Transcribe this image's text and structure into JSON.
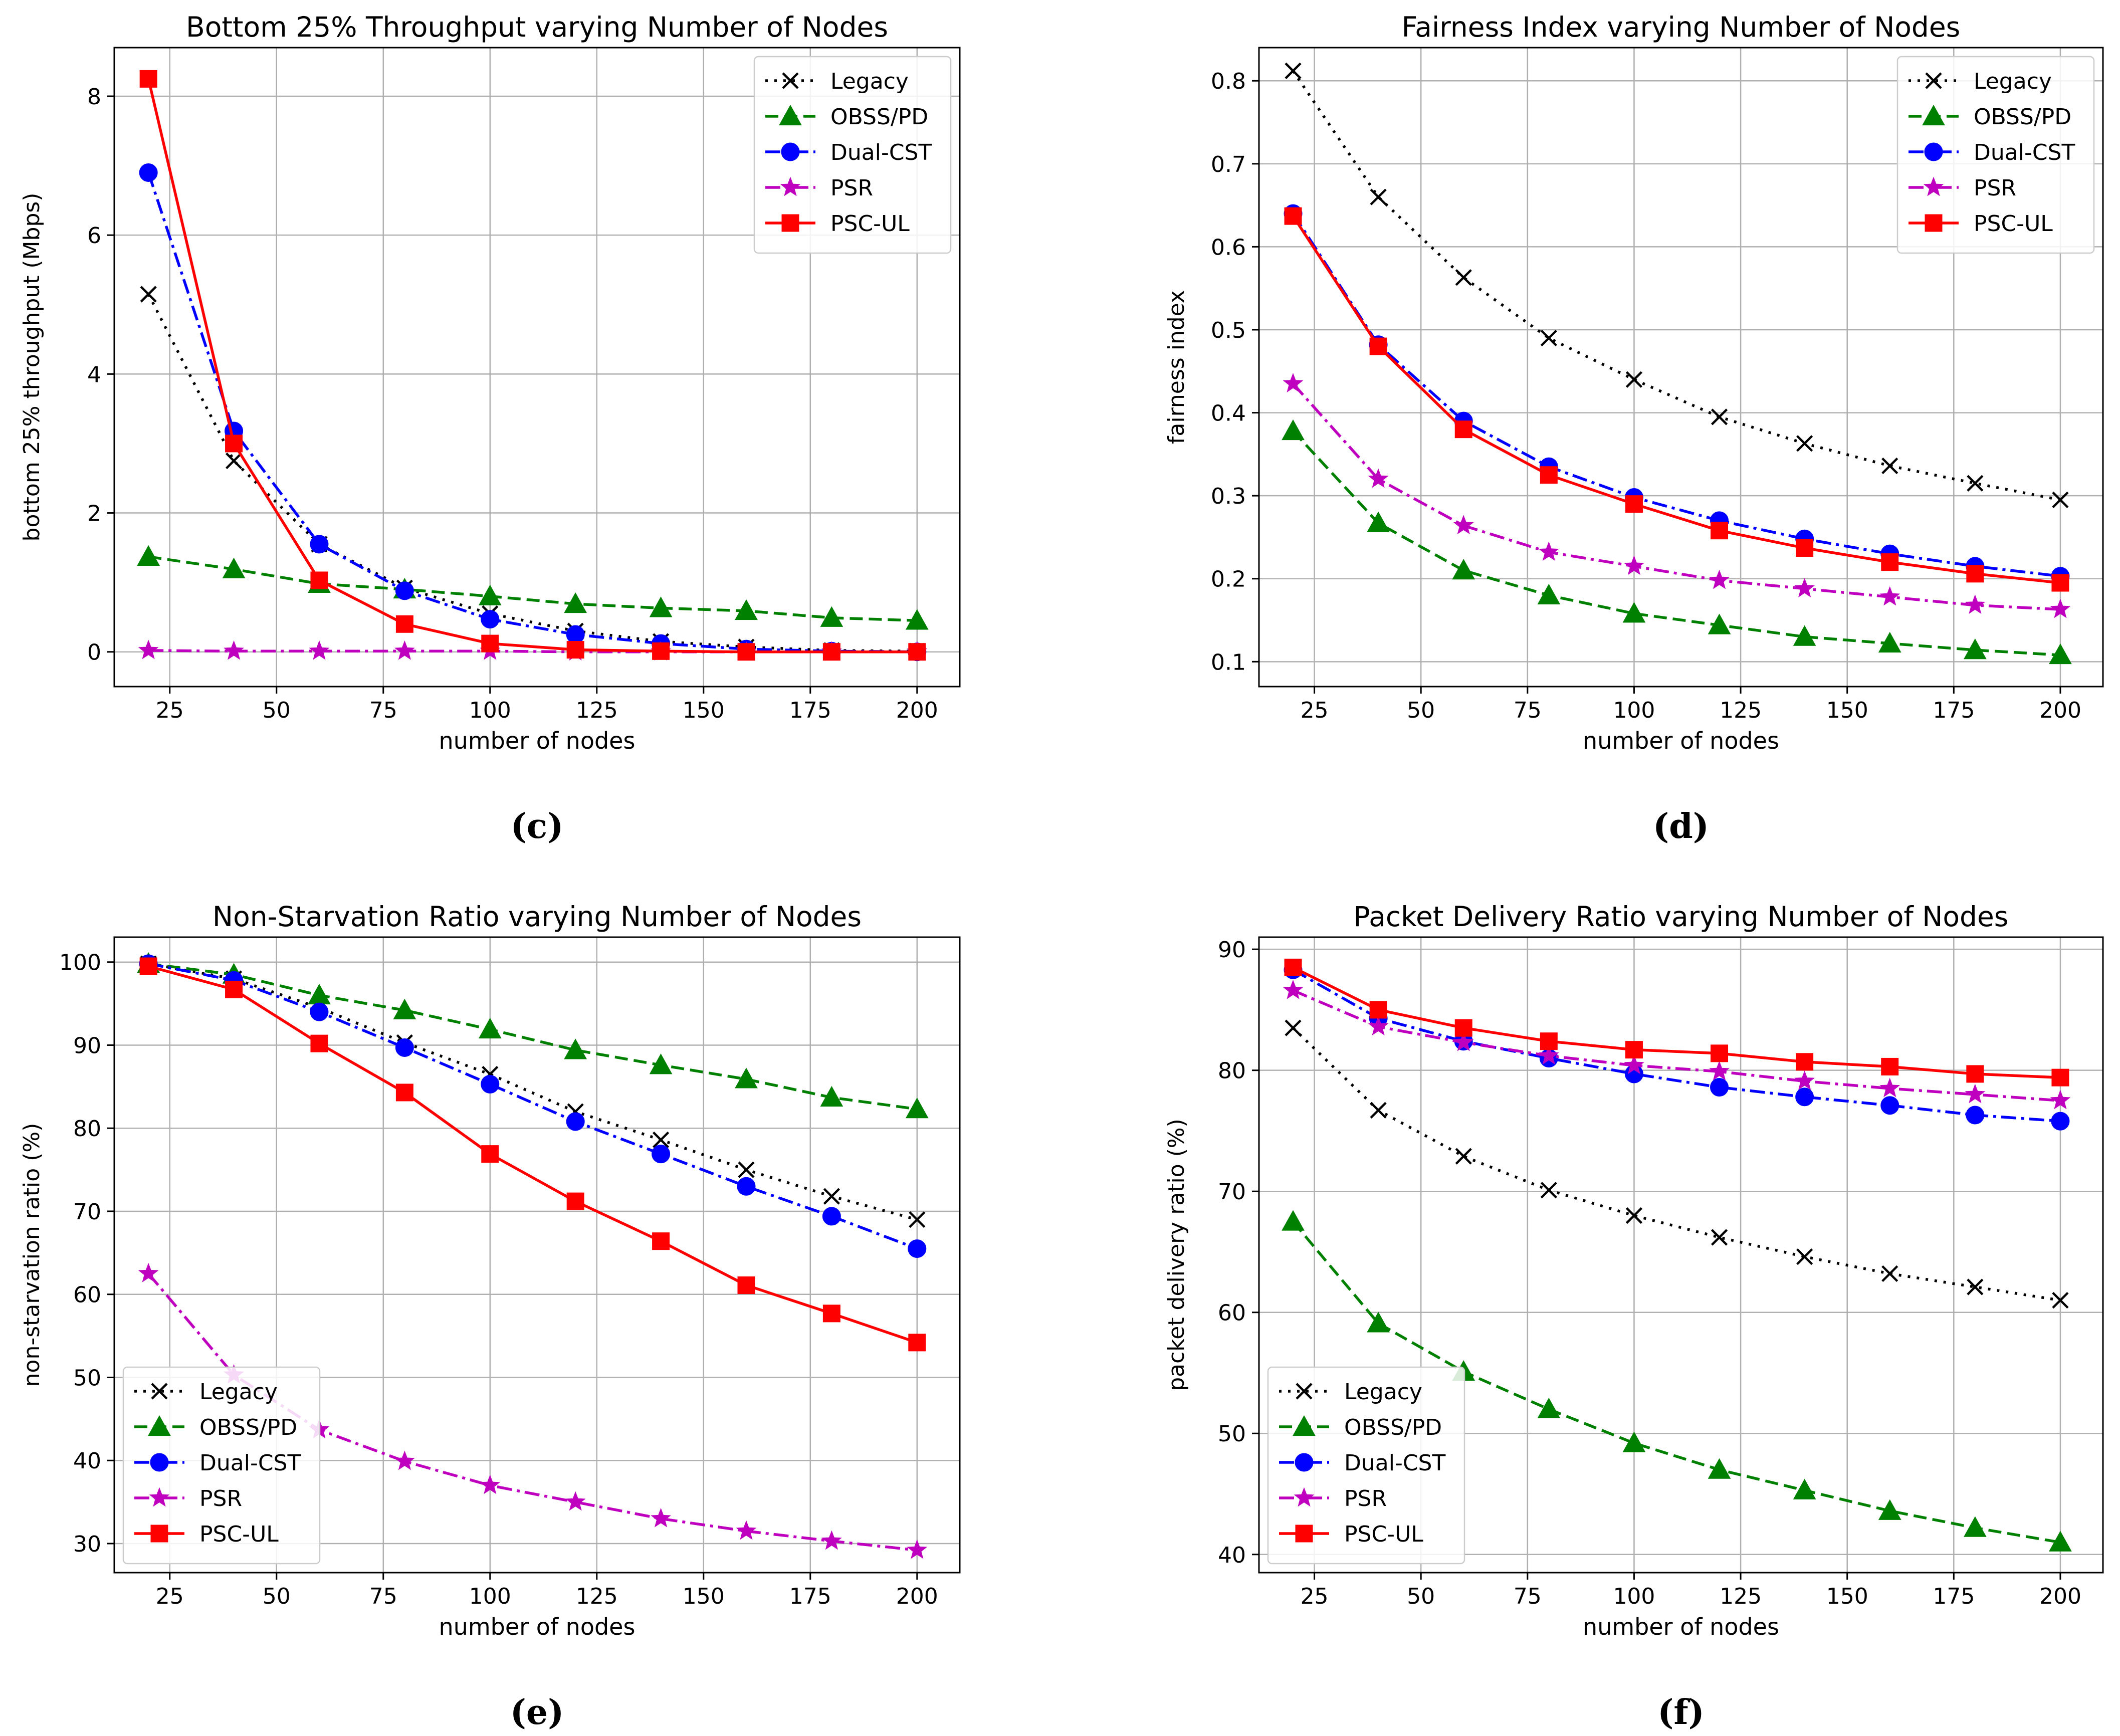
{
  "chart_data": [
    {
      "type": "line",
      "caption": "(c)",
      "title": "Bottom 25% Throughput varying Number of Nodes",
      "xlabel": "number of nodes",
      "ylabel": "bottom 25% throughput (Mbps)",
      "xlim": [
        12,
        210
      ],
      "ylim": [
        -0.5,
        8.7
      ],
      "xticks": [
        25,
        50,
        75,
        100,
        125,
        150,
        175,
        200
      ],
      "xtick_labels": [
        "25",
        "50",
        "75",
        "100",
        "125",
        "150",
        "175",
        "200"
      ],
      "yticks": [
        0,
        2,
        4,
        6,
        8
      ],
      "ytick_labels": [
        "0",
        "2",
        "4",
        "6",
        "8"
      ],
      "grid": true,
      "legend_position": "top-right",
      "x": [
        20,
        40,
        60,
        80,
        100,
        120,
        140,
        160,
        180,
        200
      ],
      "series": [
        {
          "name": "Legacy",
          "values": [
            5.15,
            2.75,
            1.55,
            0.92,
            0.55,
            0.3,
            0.15,
            0.07,
            0.02,
            0.01
          ]
        },
        {
          "name": "OBSS/PD",
          "values": [
            1.37,
            1.19,
            0.98,
            0.9,
            0.8,
            0.69,
            0.63,
            0.59,
            0.49,
            0.45
          ]
        },
        {
          "name": "Dual-CST",
          "values": [
            6.9,
            3.18,
            1.55,
            0.88,
            0.47,
            0.25,
            0.12,
            0.04,
            0.01,
            0.0
          ]
        },
        {
          "name": "PSR",
          "values": [
            0.02,
            0.01,
            0.01,
            0.01,
            0.01,
            0.0,
            0.0,
            0.0,
            0.0,
            0.0
          ]
        },
        {
          "name": "PSC-UL",
          "values": [
            8.25,
            3.0,
            1.03,
            0.4,
            0.12,
            0.03,
            0.01,
            0.0,
            0.0,
            0.0
          ]
        }
      ]
    },
    {
      "type": "line",
      "caption": "(d)",
      "title": "Fairness Index varying Number of Nodes",
      "xlabel": "number of nodes",
      "ylabel": "fairness index",
      "xlim": [
        12,
        210
      ],
      "ylim": [
        0.07,
        0.84
      ],
      "xticks": [
        25,
        50,
        75,
        100,
        125,
        150,
        175,
        200
      ],
      "xtick_labels": [
        "25",
        "50",
        "75",
        "100",
        "125",
        "150",
        "175",
        "200"
      ],
      "yticks": [
        0.1,
        0.2,
        0.3,
        0.4,
        0.5,
        0.6,
        0.7,
        0.8
      ],
      "ytick_labels": [
        "0.1",
        "0.2",
        "0.3",
        "0.4",
        "0.5",
        "0.6",
        "0.7",
        "0.8"
      ],
      "grid": true,
      "legend_position": "top-right",
      "x": [
        20,
        40,
        60,
        80,
        100,
        120,
        140,
        160,
        180,
        200
      ],
      "series": [
        {
          "name": "Legacy",
          "values": [
            0.812,
            0.66,
            0.563,
            0.49,
            0.44,
            0.395,
            0.363,
            0.336,
            0.315,
            0.295
          ]
        },
        {
          "name": "OBSS/PD",
          "values": [
            0.378,
            0.267,
            0.21,
            0.18,
            0.158,
            0.144,
            0.13,
            0.122,
            0.114,
            0.108
          ]
        },
        {
          "name": "Dual-CST",
          "values": [
            0.64,
            0.482,
            0.39,
            0.335,
            0.298,
            0.27,
            0.248,
            0.23,
            0.215,
            0.203
          ]
        },
        {
          "name": "PSR",
          "values": [
            0.435,
            0.32,
            0.264,
            0.232,
            0.215,
            0.198,
            0.188,
            0.178,
            0.168,
            0.163
          ]
        },
        {
          "name": "PSC-UL",
          "values": [
            0.637,
            0.48,
            0.38,
            0.325,
            0.29,
            0.258,
            0.237,
            0.22,
            0.206,
            0.195
          ]
        }
      ]
    },
    {
      "type": "line",
      "caption": "(e)",
      "title": "Non-Starvation Ratio varying Number of Nodes",
      "xlabel": "number of nodes",
      "ylabel": "non-starvation ratio (%)",
      "xlim": [
        12,
        210
      ],
      "ylim": [
        26.5,
        103
      ],
      "xticks": [
        25,
        50,
        75,
        100,
        125,
        150,
        175,
        200
      ],
      "xtick_labels": [
        "25",
        "50",
        "75",
        "100",
        "125",
        "150",
        "175",
        "200"
      ],
      "yticks": [
        30,
        40,
        50,
        60,
        70,
        80,
        90,
        100
      ],
      "ytick_labels": [
        "30",
        "40",
        "50",
        "60",
        "70",
        "80",
        "90",
        "100"
      ],
      "grid": true,
      "legend_position": "bottom-left",
      "x": [
        20,
        40,
        60,
        80,
        100,
        120,
        140,
        160,
        180,
        200
      ],
      "series": [
        {
          "name": "Legacy",
          "values": [
            99.8,
            98.0,
            94.5,
            90.3,
            86.5,
            82.0,
            78.6,
            75.0,
            71.8,
            69.0
          ]
        },
        {
          "name": "OBSS/PD",
          "values": [
            99.8,
            98.5,
            96.0,
            94.2,
            91.9,
            89.4,
            87.6,
            85.9,
            83.7,
            82.3
          ]
        },
        {
          "name": "Dual-CST",
          "values": [
            99.8,
            97.8,
            94.0,
            89.7,
            85.3,
            80.8,
            76.9,
            73.0,
            69.4,
            65.5
          ]
        },
        {
          "name": "PSR",
          "values": [
            62.5,
            50.3,
            43.7,
            39.9,
            37.0,
            35.0,
            33.0,
            31.5,
            30.3,
            29.2
          ]
        },
        {
          "name": "PSC-UL",
          "values": [
            99.5,
            96.7,
            90.2,
            84.3,
            76.9,
            71.2,
            66.4,
            61.1,
            57.7,
            54.2
          ]
        }
      ]
    },
    {
      "type": "line",
      "caption": "(f)",
      "title": "Packet Delivery Ratio varying Number of Nodes",
      "xlabel": "number of nodes",
      "ylabel": "packet delivery ratio (%)",
      "xlim": [
        12,
        210
      ],
      "ylim": [
        38.5,
        91
      ],
      "xticks": [
        25,
        50,
        75,
        100,
        125,
        150,
        175,
        200
      ],
      "xtick_labels": [
        "25",
        "50",
        "75",
        "100",
        "125",
        "150",
        "175",
        "200"
      ],
      "yticks": [
        40,
        50,
        60,
        70,
        80,
        90
      ],
      "ytick_labels": [
        "40",
        "50",
        "60",
        "70",
        "80",
        "90"
      ],
      "grid": true,
      "legend_position": "bottom-left",
      "x": [
        20,
        40,
        60,
        80,
        100,
        120,
        140,
        160,
        180,
        200
      ],
      "series": [
        {
          "name": "Legacy",
          "values": [
            83.5,
            76.7,
            72.9,
            70.1,
            68.0,
            66.2,
            64.6,
            63.2,
            62.1,
            61.0
          ]
        },
        {
          "name": "OBSS/PD",
          "values": [
            67.5,
            59.1,
            55.1,
            52.0,
            49.2,
            47.0,
            45.3,
            43.6,
            42.2,
            41.0
          ]
        },
        {
          "name": "Dual-CST",
          "values": [
            88.3,
            84.3,
            82.4,
            81.0,
            79.7,
            78.6,
            77.8,
            77.1,
            76.3,
            75.8
          ]
        },
        {
          "name": "PSR",
          "values": [
            86.6,
            83.6,
            82.3,
            81.2,
            80.4,
            79.9,
            79.1,
            78.5,
            78.0,
            77.5
          ]
        },
        {
          "name": "PSC-UL",
          "values": [
            88.5,
            85.0,
            83.5,
            82.4,
            81.7,
            81.4,
            80.7,
            80.3,
            79.7,
            79.4
          ]
        }
      ]
    }
  ],
  "style": {
    "series_colors": {
      "Legacy": "#000000",
      "OBSS/PD": "#008000",
      "Dual-CST": "#0000ff",
      "PSR": "#bf00bf",
      "PSC-UL": "#ff0000"
    },
    "series_markers": {
      "Legacy": "x-mark",
      "OBSS/PD": "triangle",
      "Dual-CST": "circle",
      "PSR": "star",
      "PSC-UL": "square"
    },
    "series_dashes": {
      "Legacy": "dotted",
      "OBSS/PD": "dashed",
      "Dual-CST": "dash-dot",
      "PSR": "dash-dot",
      "PSC-UL": "solid"
    },
    "grid_color": "#b0b0b0",
    "axis_color": "#000000"
  }
}
